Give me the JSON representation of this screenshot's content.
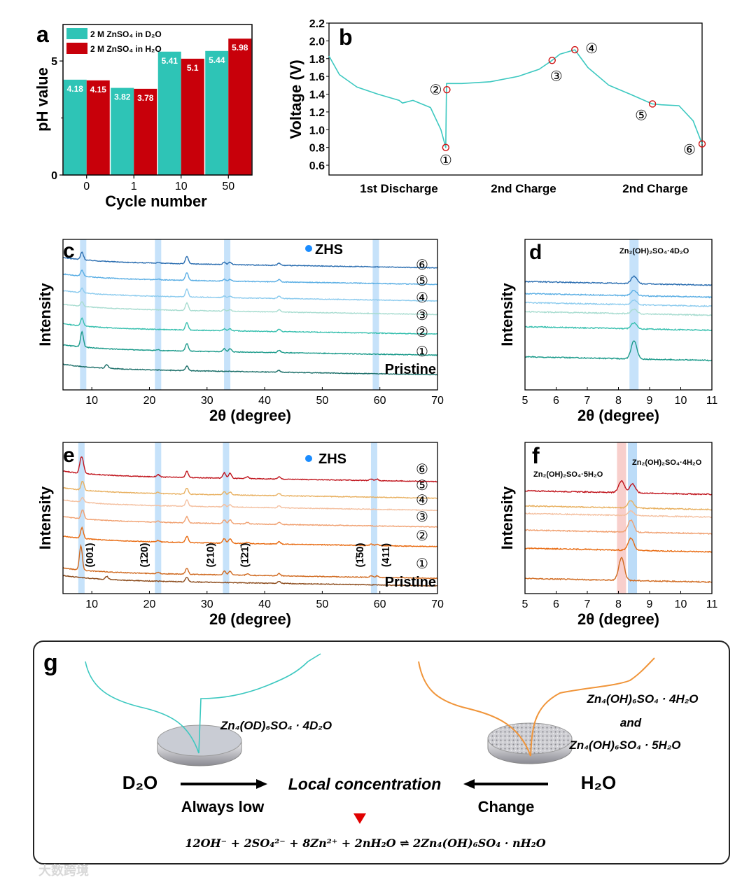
{
  "chart_data": [
    {
      "panel": "a",
      "type": "bar",
      "title": "",
      "xlabel": "Cycle number",
      "ylabel": "pH value",
      "ylim": [
        0,
        6.6
      ],
      "yticks": [
        "0",
        "5"
      ],
      "categories": [
        "0",
        "1",
        "10",
        "50"
      ],
      "series": [
        {
          "name": "2 M ZnSO₄ in D₂O",
          "color": "#2ec4b6",
          "values": [
            4.18,
            3.82,
            5.41,
            5.44
          ],
          "labels": [
            "4.18",
            "3.82",
            "5.41",
            "5.44"
          ]
        },
        {
          "name": "2 M ZnSO₄ in H₂O",
          "color": "#c8000a",
          "values": [
            4.15,
            3.78,
            5.1,
            5.98
          ],
          "labels": [
            "4.15",
            "3.78",
            "5.1",
            "5.98"
          ]
        }
      ],
      "legend": "top-left"
    },
    {
      "panel": "b",
      "type": "line",
      "ylabel": "Voltage (V)",
      "ylim": [
        0.49,
        2.2
      ],
      "yticks": [
        "0.6",
        "0.8",
        "1.0",
        "1.2",
        "1.4",
        "1.6",
        "1.8",
        "2.0",
        "2.2"
      ],
      "xticklabels": [
        "1st Discharge",
        "2nd Charge",
        "2nd Charge"
      ],
      "color": "#3cc8c0",
      "x": [
        0,
        2.8,
        7.5,
        13.1,
        18.8,
        19.7,
        22.5,
        27.2,
        30,
        31.3,
        31.5,
        35.6,
        43.2,
        50.7,
        56.3,
        59.8,
        61.9,
        65.9,
        69.4,
        75,
        80.7,
        86.7,
        89.1,
        93.8,
        97.6,
        100
      ],
      "y": [
        1.83,
        1.62,
        1.48,
        1.4,
        1.33,
        1.3,
        1.33,
        1.25,
        1.0,
        0.8,
        1.52,
        1.52,
        1.54,
        1.6,
        1.68,
        1.78,
        1.85,
        1.9,
        1.7,
        1.5,
        1.4,
        1.29,
        1.28,
        1.27,
        1.1,
        0.84
      ],
      "markers": [
        {
          "label": "①",
          "x": 31.3,
          "y": 0.8
        },
        {
          "label": "②",
          "x": 31.6,
          "y": 1.45
        },
        {
          "label": "③",
          "x": 59.8,
          "y": 1.78
        },
        {
          "label": "④",
          "x": 65.9,
          "y": 1.9
        },
        {
          "label": "⑤",
          "x": 86.7,
          "y": 1.29
        },
        {
          "label": "⑥",
          "x": 100,
          "y": 0.84
        }
      ]
    },
    {
      "panel": "c",
      "type": "line",
      "xlabel": "2θ (degree)",
      "ylabel": "Intensity",
      "xlim": [
        5,
        70
      ],
      "xticks": [
        "10",
        "20",
        "30",
        "40",
        "50",
        "60",
        "70"
      ],
      "legend_label": "ZHS",
      "legend_color": "#1a8cff",
      "bands": [
        8.5,
        21.5,
        33.5,
        59.3
      ],
      "series": [
        {
          "name": "⑥",
          "color": "#2a6db0",
          "offset": 85,
          "peaks": [
            [
              8.3,
              5
            ],
            [
              21.5,
              0.6
            ],
            [
              26.5,
              5
            ],
            [
              33,
              1.5
            ],
            [
              34,
              1.5
            ],
            [
              42.5,
              1.5
            ]
          ]
        },
        {
          "name": "⑤",
          "color": "#5aaee4",
          "offset": 74,
          "peaks": [
            [
              8.3,
              4
            ],
            [
              21.5,
              0.5
            ],
            [
              26.5,
              5
            ],
            [
              33,
              1.2
            ],
            [
              34,
              1.2
            ],
            [
              42.5,
              1.5
            ]
          ]
        },
        {
          "name": "④",
          "color": "#8ccbee",
          "offset": 63,
          "peaks": [
            [
              8.3,
              3
            ],
            [
              26.5,
              5
            ],
            [
              33,
              1
            ],
            [
              34,
              1
            ],
            [
              42.5,
              1.5
            ]
          ]
        },
        {
          "name": "③",
          "color": "#a8dcd0",
          "offset": 54,
          "peaks": [
            [
              8.3,
              3
            ],
            [
              26.5,
              5
            ],
            [
              33,
              1
            ],
            [
              34,
              1
            ],
            [
              42.5,
              1.5
            ]
          ]
        },
        {
          "name": "②",
          "color": "#36bfae",
          "offset": 41,
          "peaks": [
            [
              8.3,
              5
            ],
            [
              26.5,
              5
            ],
            [
              33,
              1.2
            ],
            [
              34,
              1.2
            ],
            [
              42.5,
              1.5
            ]
          ]
        },
        {
          "name": "①",
          "color": "#1a9a8a",
          "offset": 27,
          "peaks": [
            [
              8.3,
              10
            ],
            [
              21.5,
              0.5
            ],
            [
              26.5,
              5
            ],
            [
              33,
              2
            ],
            [
              34,
              2
            ],
            [
              42.5,
              1.5
            ]
          ]
        },
        {
          "name": "Pristine",
          "color": "#1a6e68",
          "offset": 14,
          "peaks": [
            [
              12.6,
              2.5
            ],
            [
              26.5,
              3
            ],
            [
              42.5,
              1.2
            ]
          ]
        }
      ]
    },
    {
      "panel": "d",
      "type": "line",
      "xlabel": "2θ (degree)",
      "ylabel": "Intensity",
      "xlim": [
        5,
        11
      ],
      "xticks": [
        "5",
        "6",
        "7",
        "8",
        "9",
        "10",
        "11"
      ],
      "annotation": "Zn₂(OH)₂SO₄·4D₂O",
      "bands": [
        8.5
      ],
      "series": [
        {
          "color": "#2a6db0",
          "offset": 72,
          "peaks": [
            [
              8.5,
              5
            ]
          ]
        },
        {
          "color": "#5aaee4",
          "offset": 64,
          "peaks": [
            [
              8.5,
              3.5
            ]
          ]
        },
        {
          "color": "#8ccbee",
          "offset": 58,
          "peaks": [
            [
              8.5,
              3
            ]
          ]
        },
        {
          "color": "#a8dcd0",
          "offset": 52,
          "peaks": [
            [
              8.5,
              3
            ]
          ]
        },
        {
          "color": "#36bfae",
          "offset": 42,
          "peaks": [
            [
              8.5,
              4
            ]
          ]
        },
        {
          "color": "#1a9a8a",
          "offset": 22,
          "peaks": [
            [
              8.5,
              12
            ]
          ]
        }
      ]
    },
    {
      "panel": "e",
      "type": "line",
      "xlabel": "2θ (degree)",
      "ylabel": "Intensity",
      "xlim": [
        5,
        70
      ],
      "xticks": [
        "10",
        "20",
        "30",
        "40",
        "50",
        "60",
        "70"
      ],
      "legend_label": "ZHS",
      "legend_color": "#1a8cff",
      "bands": [
        8.2,
        21.5,
        33.3,
        59.0
      ],
      "hkl": [
        "(001)",
        "(1̄20)",
        "(210)",
        "(1̄21̄)",
        "(1̄50)",
        "(411)"
      ],
      "hkl_x": [
        9.6,
        19.1,
        30.6,
        36.5,
        56.5,
        61.0
      ],
      "series": [
        {
          "name": "⑥",
          "color": "#c0141c",
          "offset": 78,
          "peaks": [
            [
              8.1,
              8
            ],
            [
              8.45,
              6
            ],
            [
              21.5,
              1.5
            ],
            [
              26.5,
              4
            ],
            [
              33,
              3.5
            ],
            [
              34,
              3.5
            ],
            [
              37,
              1.2
            ],
            [
              42.5,
              1.5
            ],
            [
              58.5,
              1
            ],
            [
              59.5,
              1
            ]
          ]
        },
        {
          "name": "⑤",
          "color": "#e8b060",
          "offset": 67,
          "peaks": [
            [
              8.4,
              6
            ],
            [
              21.5,
              0.8
            ],
            [
              26.5,
              4
            ],
            [
              33,
              2
            ],
            [
              34,
              2
            ],
            [
              42.5,
              1.5
            ]
          ]
        },
        {
          "name": "④",
          "color": "#f4c0a0",
          "offset": 59,
          "peaks": [
            [
              8.4,
              3
            ],
            [
              26.5,
              4
            ],
            [
              33,
              1.5
            ],
            [
              34,
              1.5
            ],
            [
              42.5,
              1.5
            ]
          ]
        },
        {
          "name": "③",
          "color": "#f0a070",
          "offset": 48,
          "peaks": [
            [
              8.4,
              6
            ],
            [
              21.5,
              0.8
            ],
            [
              26.5,
              4
            ],
            [
              33,
              2.5
            ],
            [
              34,
              2.5
            ],
            [
              37,
              1
            ],
            [
              42.5,
              1.5
            ]
          ]
        },
        {
          "name": "②",
          "color": "#e86a10",
          "offset": 35,
          "peaks": [
            [
              8.3,
              7
            ],
            [
              21.5,
              1
            ],
            [
              26.5,
              4
            ],
            [
              33,
              3
            ],
            [
              34,
              3
            ],
            [
              37,
              1
            ],
            [
              42.5,
              1.5
            ],
            [
              58.5,
              1
            ],
            [
              59.5,
              1
            ]
          ]
        },
        {
          "name": "①",
          "color": "#d06a20",
          "offset": 14,
          "peaks": [
            [
              8.1,
              16
            ],
            [
              21.5,
              1
            ],
            [
              26.5,
              4
            ],
            [
              33,
              2.5
            ],
            [
              34,
              2.5
            ],
            [
              37,
              1
            ],
            [
              42.5,
              1.5
            ],
            [
              58.5,
              1
            ],
            [
              59.5,
              1
            ]
          ]
        },
        {
          "name": "Pristine",
          "color": "#8b4a1a",
          "offset": 9,
          "peaks": [
            [
              12.6,
              2
            ],
            [
              26.5,
              3
            ],
            [
              42.5,
              1.2
            ]
          ]
        }
      ]
    },
    {
      "panel": "f",
      "type": "line",
      "xlabel": "2θ (degree)",
      "ylabel": "Intensity",
      "xlim": [
        5,
        11
      ],
      "xticks": [
        "5",
        "6",
        "7",
        "8",
        "9",
        "10",
        "11"
      ],
      "annotations": [
        "Zn₂(OH)₂SO₄·5H₂O",
        "Zn₂(OH)₂SO₄·4H₂O"
      ],
      "bands": [
        8.1,
        8.45
      ],
      "band_colors": [
        "#f8cfcc",
        "#bcdcf8"
      ],
      "series": [
        {
          "color": "#c0141c",
          "offset": 68,
          "peaks": [
            [
              8.1,
              8
            ],
            [
              8.45,
              6
            ]
          ]
        },
        {
          "color": "#e8b060",
          "offset": 58,
          "peaks": [
            [
              8.4,
              5
            ]
          ]
        },
        {
          "color": "#f4c0a0",
          "offset": 53,
          "peaks": [
            [
              8.4,
              3
            ]
          ]
        },
        {
          "color": "#f0a070",
          "offset": 42,
          "peaks": [
            [
              8.4,
              8
            ]
          ]
        },
        {
          "color": "#e86a10",
          "offset": 30,
          "peaks": [
            [
              8.4,
              8
            ]
          ]
        },
        {
          "color": "#d06a20",
          "offset": 10,
          "peaks": [
            [
              8.1,
              15
            ]
          ]
        }
      ]
    }
  ],
  "panel_labels": [
    "a",
    "b",
    "c",
    "d",
    "e",
    "f",
    "g"
  ],
  "schematic": {
    "left_formula": "Zn₄(OD)₆SO₄ · 4D₂O",
    "right_formula_1": "Zn₄(OH)₆SO₄ · 4H₂O",
    "right_and": "and",
    "right_formula_2": "Zn₄(OH)₆SO₄ · 5H₂O",
    "left_solvent": "D₂O",
    "right_solvent": "H₂O",
    "left_caption": "Always low",
    "center_text": "Local concentration",
    "right_caption": "Change",
    "equation": "12OH⁻ + 2SO₄²⁻ + 8Zn²⁺ + 2nH₂O ⇌ 2Zn₄(OH)₆SO₄ · nH₂O",
    "teal": "#3cc8c0",
    "orange": "#f0953a",
    "arrow_color": "#e00000"
  },
  "watermark": "大数跨境"
}
